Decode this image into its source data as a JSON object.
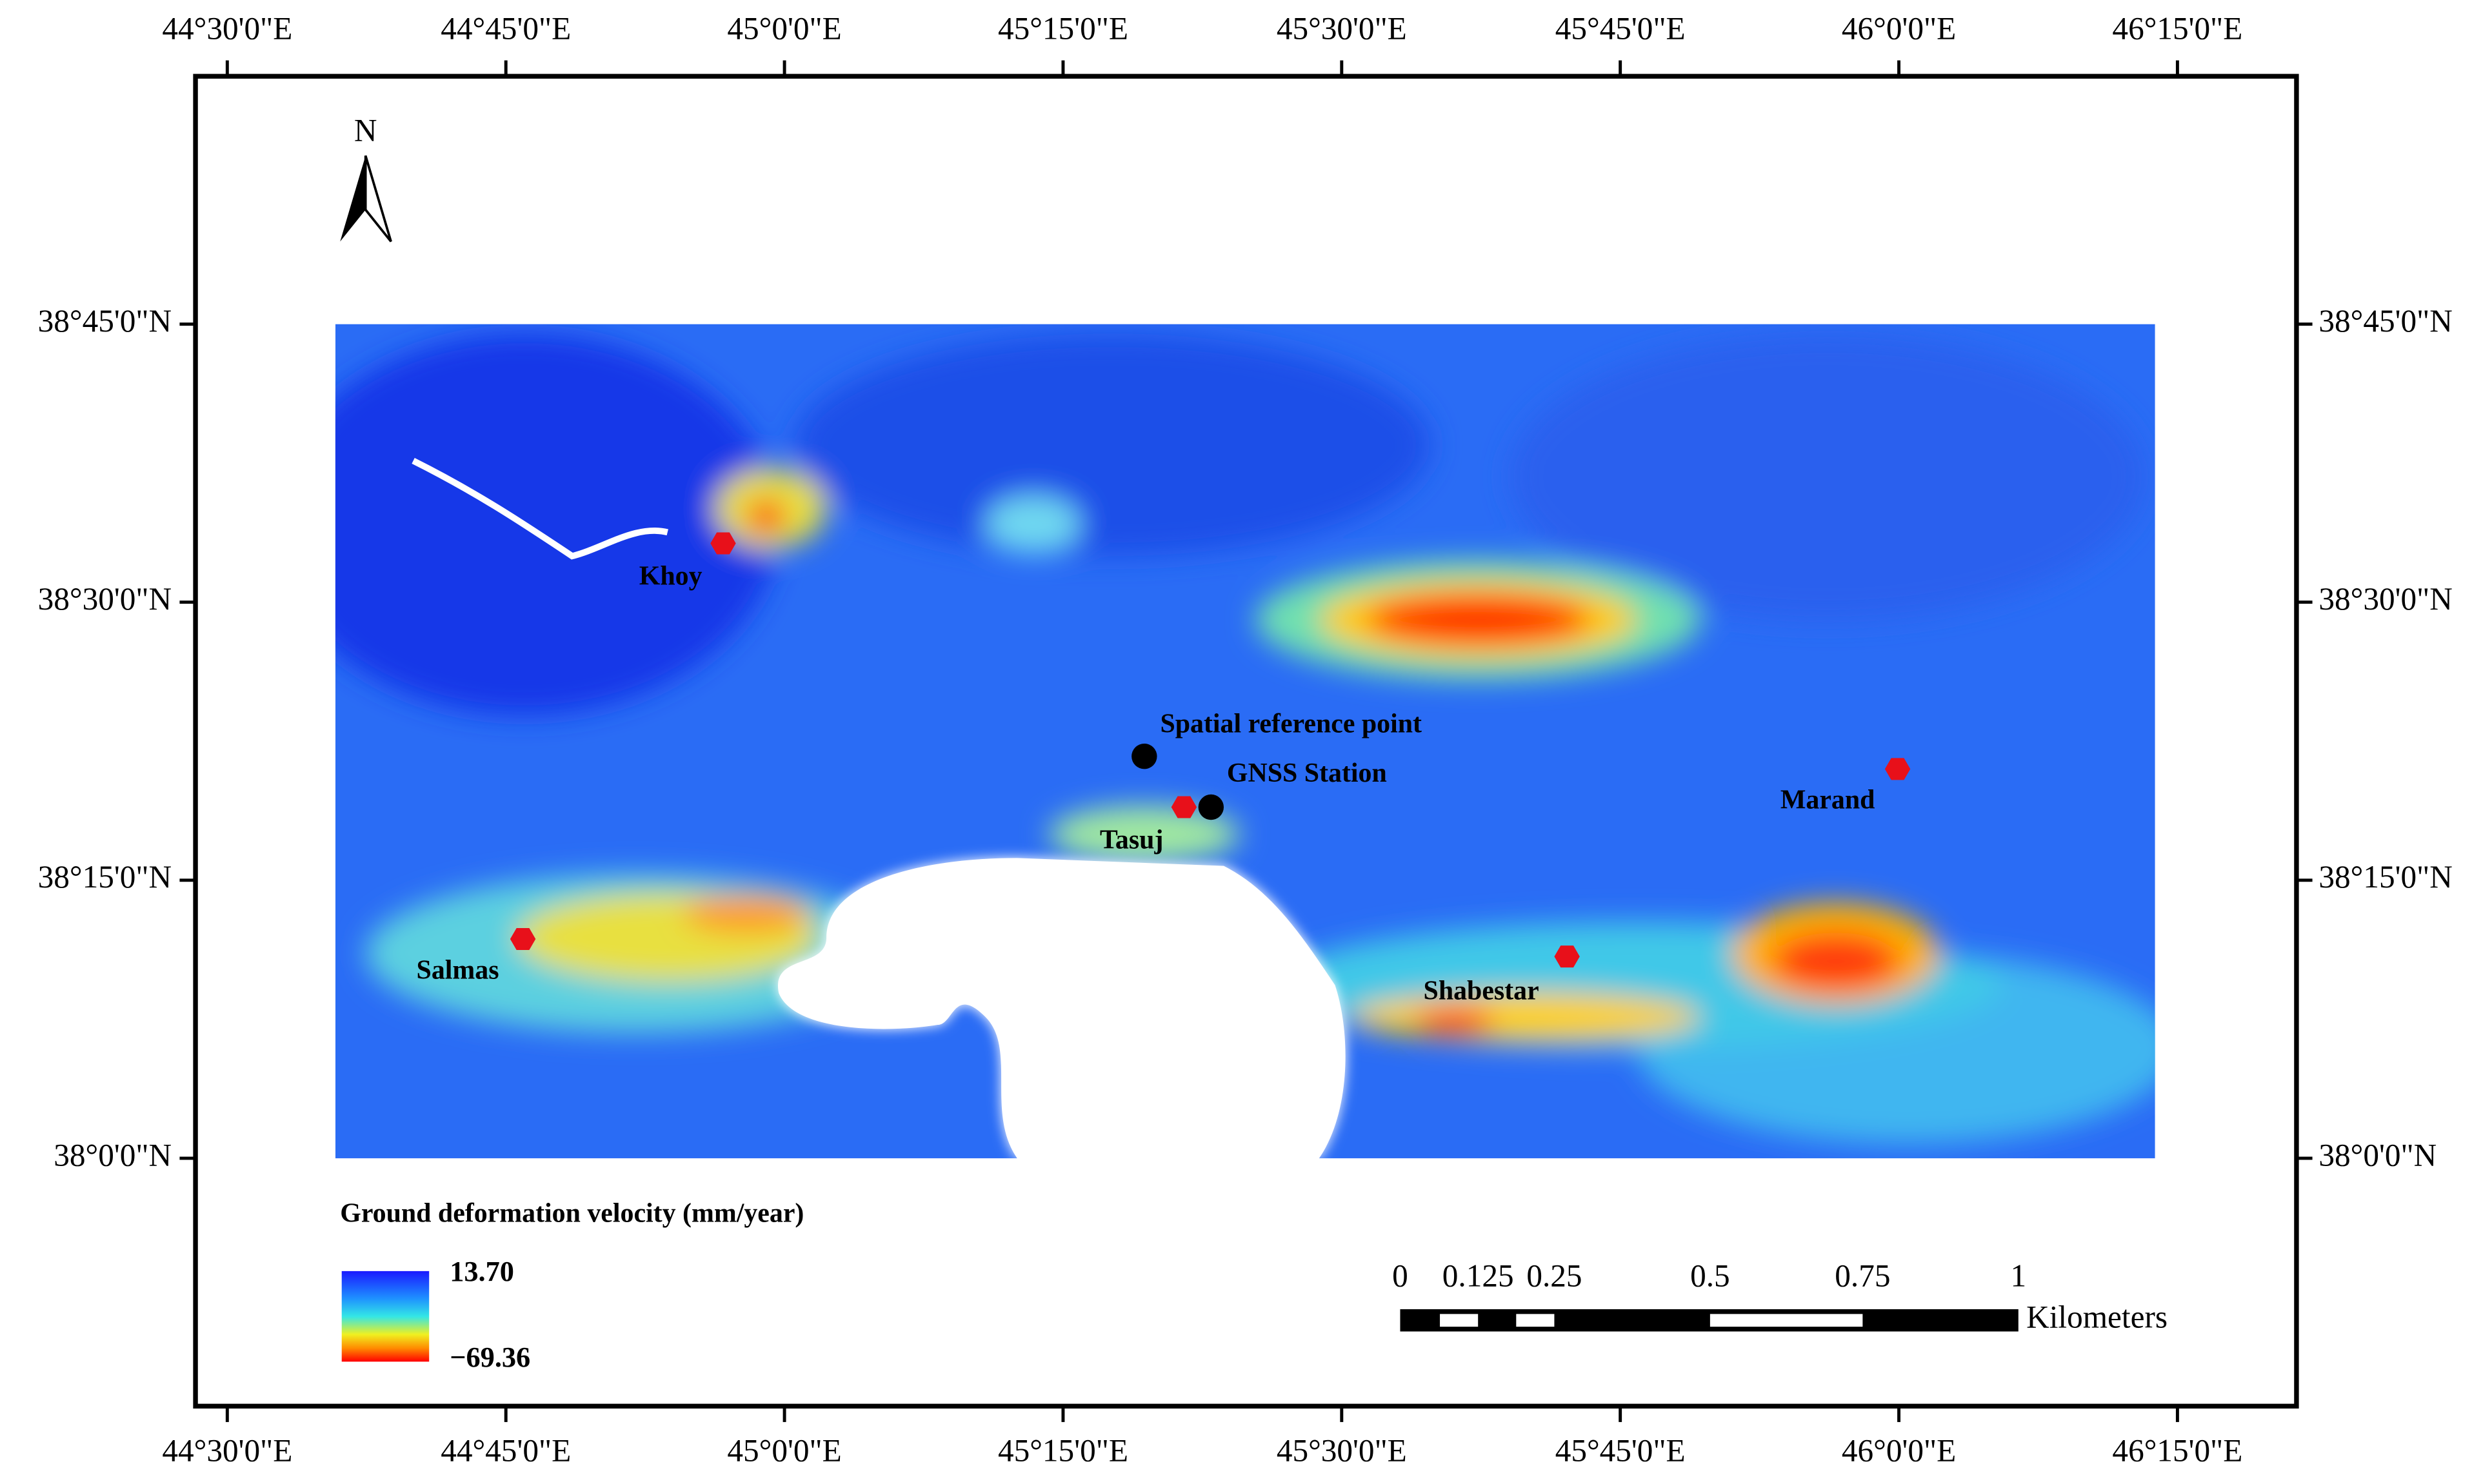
{
  "map": {
    "top_labels": [
      "44°30'0\"E",
      "44°45'0\"E",
      "45°0'0\"E",
      "45°15'0\"E",
      "45°30'0\"E",
      "45°45'0\"E",
      "46°0'0\"E",
      "46°15'0\"E"
    ],
    "bottom_labels": [
      "44°30'0\"E",
      "44°45'0\"E",
      "45°0'0\"E",
      "45°15'0\"E",
      "45°30'0\"E",
      "45°45'0\"E",
      "46°0'0\"E",
      "46°15'0\"E"
    ],
    "left_labels": [
      "38°45'0\"N",
      "38°30'0\"N",
      "38°15'0\"N",
      "38°0'0\"N"
    ],
    "right_labels": [
      "38°45'0\"N",
      "38°30'0\"N",
      "38°15'0\"N",
      "38°0'0\"N"
    ],
    "north": "N",
    "places": [
      "Khoy",
      "Tasuj",
      "Salmas",
      "Shabestar",
      "Marand"
    ],
    "points": [
      "Spatial reference point",
      "GNSS Station"
    ],
    "legend": {
      "title": "Ground deformation velocity (mm/year)",
      "max": "13.70",
      "min": "−69.36"
    },
    "scale": {
      "labels": [
        "0",
        "0.125",
        "0.25",
        "0.5",
        "0.75",
        "1"
      ],
      "unit": "Kilometers"
    }
  }
}
